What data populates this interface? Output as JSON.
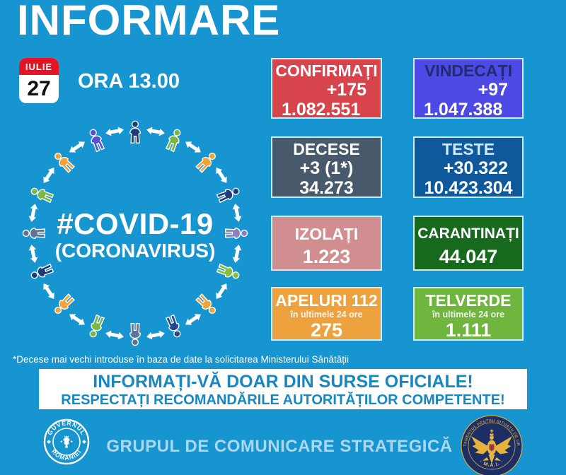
{
  "title": "INFORMARE",
  "date": {
    "month": "IULIE",
    "day": "27",
    "header_bg": "#e31425"
  },
  "time": "ORA 13.00",
  "covid": {
    "line1": "#COVID-19",
    "line2": "(CORONAVIRUS)"
  },
  "stats": {
    "confirmati": {
      "label": "CONFIRMAȚI",
      "delta": "+175",
      "total": "1.082.551",
      "bg": "#d7444b"
    },
    "vindecati": {
      "label": "VINDECAȚI",
      "delta": "+97",
      "total": "1.047.388",
      "bg": "#4d49e4",
      "label_color": "#232b70"
    },
    "decese": {
      "label": "DECESE",
      "delta": "+3 (1*)",
      "total": "34.273",
      "bg": "#47596b"
    },
    "teste": {
      "label": "TESTE",
      "delta": "+30.322",
      "total": "10.423.304",
      "bg": "#0f589c",
      "label_color": "#cfe9fa"
    },
    "izolati": {
      "label": "IZOLAȚI",
      "total": "1.223",
      "bg": "#d08e90"
    },
    "carantinati": {
      "label": "CARANTINAȚI",
      "total": "44.047",
      "bg": "#17691d"
    },
    "apeluri": {
      "label": "APELURI 112",
      "sub": "în ultimele 24 ore",
      "total": "275",
      "bg": "#eda23e"
    },
    "telverde": {
      "label": "TELVERDE",
      "sub": "în ultimele 24 ore",
      "total": "1.111",
      "bg": "#70b53e"
    }
  },
  "footnote": "*Decese mai vechi introduse în baza de date la solicitarea Ministerului Sănătății",
  "banner": {
    "line1": "INFORMAȚI-VĂ DOAR DIN SURSE OFICIALE!",
    "line2": "RESPECTAȚI RECOMANDĂRILE AUTORITĂȚILOR COMPETENTE!"
  },
  "footer": {
    "text": "GRUPUL DE COMUNICARE STRATEGICĂ",
    "gov_seal": {
      "top": "GUVERNUL",
      "bottom": "ROMÂNIEI"
    },
    "dsu_seal": {
      "ring": "DEPARTAMENTUL PENTRU SITUAȚII DE URGENȚĂ",
      "bottom": "· M.A.I. ·"
    }
  },
  "circle": {
    "icon_colors": [
      "#1d3c78",
      "#7ab843",
      "#f2a33a",
      "#1d3c78",
      "#8d7fc0",
      "#86bf3e",
      "#f2a33a",
      "#24468c",
      "#5e7296",
      "#7ab843",
      "#f2a33a",
      "#1d3c78",
      "#5e7296",
      "#7ab843",
      "#f2a33a",
      "#5a50d2"
    ]
  }
}
